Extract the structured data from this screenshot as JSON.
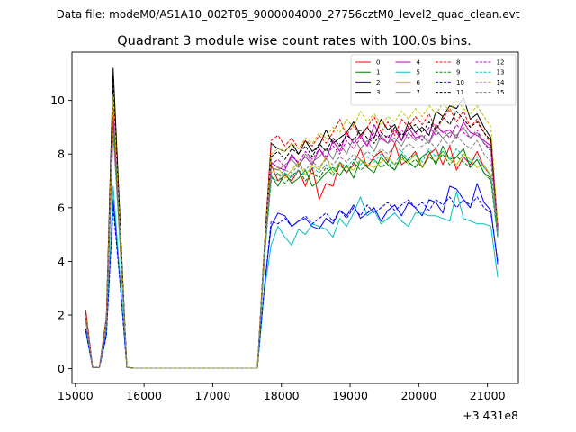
{
  "chart_data": {
    "type": "line",
    "suptitle": "Data file: modeM0/AS1A10_002T05_9000004000_27756cztM0_level2_quad_clean.evt",
    "title": "Quadrant 3 module wise count rates with 100.0s bins.",
    "xlabel": "",
    "ylabel": "",
    "x_offset_label": "+3.431e8",
    "xlim": [
      14950,
      21450
    ],
    "ylim": [
      -0.55,
      11.8
    ],
    "x_ticks": [
      15000,
      16000,
      17000,
      18000,
      19000,
      20000,
      21000
    ],
    "y_ticks": [
      0,
      2,
      4,
      6,
      8,
      10
    ],
    "grid": false,
    "legend": {
      "placement": "top-right",
      "columns": 4
    },
    "x": [
      15150,
      15250,
      15350,
      15450,
      15550,
      15650,
      15750,
      15850,
      15950,
      16050,
      16150,
      16250,
      16350,
      16450,
      16550,
      16650,
      16750,
      16850,
      16950,
      17050,
      17150,
      17250,
      17350,
      17450,
      17550,
      17650,
      17750,
      17850,
      17950,
      18050,
      18150,
      18250,
      18350,
      18450,
      18550,
      18650,
      18750,
      18850,
      18950,
      19050,
      19150,
      19250,
      19350,
      19450,
      19550,
      19650,
      19750,
      19850,
      19950,
      20050,
      20150,
      20250,
      20350,
      20450,
      20550,
      20650,
      20750,
      20850,
      20950,
      21050,
      21150
    ],
    "series": [
      {
        "name": "0",
        "color": "#ff0000",
        "dash": "solid",
        "values": [
          2.2,
          0.05,
          0.05,
          1.8,
          9.6,
          5.1,
          0.05,
          0.02,
          0.02,
          0.02,
          0.02,
          0.02,
          0.02,
          0.02,
          0.02,
          0.02,
          0.02,
          0.02,
          0.02,
          0.02,
          0.02,
          0.02,
          0.02,
          0.02,
          0.02,
          0.02,
          4.2,
          7.6,
          7.0,
          7.2,
          7.0,
          7.4,
          6.8,
          7.5,
          6.3,
          6.9,
          6.8,
          7.7,
          7.3,
          7.6,
          8.2,
          7.5,
          7.9,
          8.1,
          7.7,
          8.4,
          7.6,
          7.8,
          8.1,
          7.5,
          8.0,
          8.2,
          7.6,
          8.3,
          7.4,
          7.9,
          7.6,
          8.1,
          7.5,
          7.2,
          5.0
        ]
      },
      {
        "name": "1",
        "color": "#008000",
        "dash": "solid",
        "values": [
          1.9,
          0.05,
          0.05,
          1.6,
          9.1,
          4.8,
          0.05,
          0.02,
          0.02,
          0.02,
          0.02,
          0.02,
          0.02,
          0.02,
          0.02,
          0.02,
          0.02,
          0.02,
          0.02,
          0.02,
          0.02,
          0.02,
          0.02,
          0.02,
          0.02,
          0.02,
          4.1,
          7.2,
          6.8,
          7.3,
          6.9,
          7.1,
          7.4,
          6.8,
          7.0,
          7.3,
          7.5,
          7.2,
          7.6,
          7.1,
          7.8,
          7.5,
          7.3,
          7.9,
          7.6,
          7.4,
          8.0,
          7.7,
          7.5,
          7.9,
          8.1,
          7.6,
          8.3,
          7.8,
          7.9,
          8.2,
          7.5,
          7.8,
          7.3,
          7.1,
          4.9
        ]
      },
      {
        "name": "2",
        "color": "#0000ff",
        "dash": "solid",
        "values": [
          1.5,
          0.05,
          0.05,
          1.3,
          6.3,
          3.3,
          0.05,
          0.02,
          0.02,
          0.02,
          0.02,
          0.02,
          0.02,
          0.02,
          0.02,
          0.02,
          0.02,
          0.02,
          0.02,
          0.02,
          0.02,
          0.02,
          0.02,
          0.02,
          0.02,
          0.02,
          3.0,
          5.3,
          5.8,
          5.7,
          5.3,
          5.5,
          5.6,
          5.3,
          5.2,
          5.6,
          5.4,
          5.9,
          5.7,
          6.1,
          5.6,
          5.8,
          6.0,
          5.5,
          5.9,
          6.1,
          5.7,
          6.2,
          6.0,
          5.7,
          6.3,
          6.2,
          5.8,
          6.8,
          6.7,
          6.3,
          6.0,
          6.9,
          6.2,
          5.9,
          3.9
        ]
      },
      {
        "name": "3",
        "color": "#000000",
        "dash": "solid",
        "values": [
          2.1,
          0.05,
          0.05,
          1.9,
          11.2,
          5.6,
          0.05,
          0.02,
          0.02,
          0.02,
          0.02,
          0.02,
          0.02,
          0.02,
          0.02,
          0.02,
          0.02,
          0.02,
          0.02,
          0.02,
          0.02,
          0.02,
          0.02,
          0.02,
          0.02,
          0.02,
          4.5,
          8.4,
          8.2,
          8.1,
          8.4,
          8.0,
          8.5,
          8.1,
          8.3,
          8.9,
          8.4,
          8.6,
          8.8,
          9.2,
          8.7,
          9.0,
          8.6,
          9.3,
          8.9,
          9.1,
          8.5,
          9.2,
          8.8,
          9.0,
          8.7,
          9.6,
          9.4,
          9.8,
          9.7,
          10.1,
          9.3,
          9.5,
          9.0,
          8.6,
          5.3
        ]
      },
      {
        "name": "4",
        "color": "#bf00bf",
        "dash": "solid",
        "values": [
          2.0,
          0.05,
          0.05,
          1.7,
          9.3,
          4.9,
          0.05,
          0.02,
          0.02,
          0.02,
          0.02,
          0.02,
          0.02,
          0.02,
          0.02,
          0.02,
          0.02,
          0.02,
          0.02,
          0.02,
          0.02,
          0.02,
          0.02,
          0.02,
          0.02,
          0.02,
          4.3,
          7.7,
          7.5,
          7.4,
          8.0,
          7.6,
          7.9,
          7.6,
          8.2,
          7.8,
          8.5,
          8.1,
          8.8,
          8.4,
          8.7,
          8.3,
          9.1,
          8.6,
          8.4,
          8.9,
          8.5,
          9.0,
          8.6,
          8.7,
          8.4,
          9.1,
          8.8,
          8.9,
          8.6,
          9.2,
          8.8,
          8.7,
          8.5,
          8.3,
          5.1
        ]
      },
      {
        "name": "5",
        "color": "#00bfbf",
        "dash": "solid",
        "values": [
          1.4,
          0.05,
          0.05,
          1.2,
          6.8,
          3.4,
          0.05,
          0.02,
          0.02,
          0.02,
          0.02,
          0.02,
          0.02,
          0.02,
          0.02,
          0.02,
          0.02,
          0.02,
          0.02,
          0.02,
          0.02,
          0.02,
          0.02,
          0.02,
          0.02,
          0.02,
          2.9,
          4.6,
          5.3,
          4.9,
          4.6,
          5.2,
          5.0,
          5.4,
          5.3,
          5.2,
          4.9,
          5.6,
          5.3,
          5.8,
          6.4,
          5.7,
          5.9,
          5.4,
          5.6,
          5.8,
          5.5,
          5.3,
          5.8,
          5.8,
          5.7,
          5.7,
          5.6,
          5.5,
          6.6,
          5.6,
          5.5,
          5.4,
          5.4,
          5.3,
          3.4
        ]
      },
      {
        "name": "6",
        "color": "#bfbf00",
        "dash": "solid",
        "values": [
          1.8,
          0.05,
          0.05,
          1.6,
          10.0,
          5.0,
          0.05,
          0.02,
          0.02,
          0.02,
          0.02,
          0.02,
          0.02,
          0.02,
          0.02,
          0.02,
          0.02,
          0.02,
          0.02,
          0.02,
          0.02,
          0.02,
          0.02,
          0.02,
          0.02,
          0.02,
          4.2,
          7.3,
          7.5,
          7.1,
          7.4,
          7.7,
          7.2,
          7.6,
          7.4,
          7.9,
          7.3,
          7.7,
          7.5,
          7.4,
          7.8,
          7.6,
          7.5,
          7.7,
          7.9,
          7.6,
          7.8,
          7.7,
          8.0,
          7.5,
          7.9,
          7.7,
          8.1,
          7.8,
          7.6,
          8.0,
          7.8,
          7.5,
          7.6,
          7.2,
          5.0
        ]
      },
      {
        "name": "7",
        "color": "#808080",
        "dash": "solid",
        "values": [
          1.9,
          0.05,
          0.05,
          1.6,
          9.0,
          4.8,
          0.05,
          0.02,
          0.02,
          0.02,
          0.02,
          0.02,
          0.02,
          0.02,
          0.02,
          0.02,
          0.02,
          0.02,
          0.02,
          0.02,
          0.02,
          0.02,
          0.02,
          0.02,
          0.02,
          0.02,
          4.2,
          7.5,
          7.4,
          7.6,
          7.8,
          7.5,
          8.0,
          7.7,
          7.9,
          8.2,
          7.8,
          8.4,
          8.0,
          8.6,
          8.2,
          8.5,
          8.1,
          8.7,
          8.4,
          8.6,
          8.3,
          8.8,
          8.5,
          8.7,
          8.4,
          8.9,
          8.6,
          8.8,
          8.7,
          9.0,
          8.6,
          8.8,
          8.4,
          8.2,
          5.1
        ]
      },
      {
        "name": "8",
        "color": "#ff0000",
        "dash": "dashed",
        "values": [
          2.1,
          0.05,
          0.05,
          1.8,
          9.8,
          5.2,
          0.05,
          0.02,
          0.02,
          0.02,
          0.02,
          0.02,
          0.02,
          0.02,
          0.02,
          0.02,
          0.02,
          0.02,
          0.02,
          0.02,
          0.02,
          0.02,
          0.02,
          0.02,
          0.02,
          0.02,
          4.4,
          8.5,
          8.7,
          8.3,
          8.6,
          8.2,
          8.5,
          8.3,
          8.7,
          8.4,
          8.8,
          9.3,
          8.7,
          9.1,
          8.6,
          9.0,
          9.4,
          8.8,
          9.2,
          8.7,
          9.3,
          9.0,
          9.4,
          9.1,
          9.5,
          8.9,
          9.3,
          9.7,
          9.2,
          9.6,
          9.0,
          9.3,
          8.8,
          8.4,
          5.2
        ]
      },
      {
        "name": "9",
        "color": "#008000",
        "dash": "dashed",
        "values": [
          1.9,
          0.05,
          0.05,
          1.6,
          9.0,
          4.7,
          0.05,
          0.02,
          0.02,
          0.02,
          0.02,
          0.02,
          0.02,
          0.02,
          0.02,
          0.02,
          0.02,
          0.02,
          0.02,
          0.02,
          0.02,
          0.02,
          0.02,
          0.02,
          0.02,
          0.02,
          4.1,
          7.0,
          7.3,
          6.9,
          7.2,
          7.4,
          7.0,
          7.3,
          7.1,
          7.5,
          7.2,
          7.6,
          7.3,
          7.7,
          7.4,
          7.6,
          7.8,
          7.5,
          7.7,
          7.4,
          7.9,
          7.6,
          7.8,
          7.5,
          7.9,
          7.7,
          8.0,
          7.6,
          7.9,
          7.7,
          7.5,
          7.8,
          7.3,
          7.0,
          4.9
        ]
      },
      {
        "name": "10",
        "color": "#0000ff",
        "dash": "dashed",
        "values": [
          1.4,
          0.05,
          0.05,
          1.2,
          6.0,
          3.2,
          0.05,
          0.02,
          0.02,
          0.02,
          0.02,
          0.02,
          0.02,
          0.02,
          0.02,
          0.02,
          0.02,
          0.02,
          0.02,
          0.02,
          0.02,
          0.02,
          0.02,
          0.02,
          0.02,
          0.02,
          3.0,
          5.5,
          5.4,
          5.6,
          5.3,
          5.5,
          5.7,
          5.4,
          5.6,
          5.8,
          5.5,
          5.9,
          5.6,
          6.0,
          5.7,
          6.1,
          5.8,
          6.0,
          6.2,
          5.9,
          6.1,
          6.3,
          6.0,
          6.2,
          5.9,
          6.3,
          6.1,
          6.4,
          6.0,
          6.3,
          6.1,
          6.4,
          6.0,
          5.8,
          4.0
        ]
      },
      {
        "name": "11",
        "color": "#000000",
        "dash": "dashed",
        "values": [
          2.0,
          0.05,
          0.05,
          1.8,
          10.6,
          5.4,
          0.05,
          0.02,
          0.02,
          0.02,
          0.02,
          0.02,
          0.02,
          0.02,
          0.02,
          0.02,
          0.02,
          0.02,
          0.02,
          0.02,
          0.02,
          0.02,
          0.02,
          0.02,
          0.02,
          0.02,
          4.4,
          7.9,
          8.1,
          7.8,
          8.2,
          8.0,
          8.3,
          7.9,
          8.4,
          8.1,
          8.6,
          8.3,
          8.7,
          8.5,
          8.9,
          8.6,
          8.4,
          8.8,
          8.6,
          9.0,
          8.7,
          8.9,
          9.1,
          8.8,
          9.2,
          8.9,
          9.4,
          9.1,
          9.6,
          9.3,
          9.0,
          9.2,
          8.8,
          8.5,
          5.3
        ]
      },
      {
        "name": "12",
        "color": "#bf00bf",
        "dash": "dashed",
        "values": [
          1.9,
          0.05,
          0.05,
          1.7,
          9.2,
          4.9,
          0.05,
          0.02,
          0.02,
          0.02,
          0.02,
          0.02,
          0.02,
          0.02,
          0.02,
          0.02,
          0.02,
          0.02,
          0.02,
          0.02,
          0.02,
          0.02,
          0.02,
          0.02,
          0.02,
          0.02,
          4.3,
          7.6,
          7.8,
          7.5,
          7.9,
          7.7,
          8.1,
          7.8,
          8.2,
          7.9,
          8.3,
          8.0,
          8.5,
          8.2,
          8.6,
          8.3,
          8.8,
          8.5,
          8.7,
          8.4,
          8.9,
          8.6,
          8.8,
          8.5,
          9.0,
          8.7,
          8.9,
          8.6,
          9.1,
          8.8,
          8.6,
          8.9,
          8.4,
          8.1,
          5.1
        ]
      },
      {
        "name": "13",
        "color": "#00bfbf",
        "dash": "dashed",
        "values": [
          1.8,
          0.05,
          0.05,
          1.6,
          8.8,
          4.6,
          0.05,
          0.02,
          0.02,
          0.02,
          0.02,
          0.02,
          0.02,
          0.02,
          0.02,
          0.02,
          0.02,
          0.02,
          0.02,
          0.02,
          0.02,
          0.02,
          0.02,
          0.02,
          0.02,
          0.02,
          4.0,
          7.1,
          7.0,
          7.3,
          7.1,
          7.4,
          7.2,
          7.5,
          7.3,
          7.6,
          7.4,
          7.7,
          7.5,
          7.8,
          7.6,
          7.9,
          7.7,
          8.0,
          7.8,
          7.6,
          8.1,
          7.8,
          8.0,
          7.7,
          8.2,
          7.9,
          8.1,
          7.8,
          8.2,
          7.9,
          7.7,
          7.9,
          7.5,
          7.2,
          4.9
        ]
      },
      {
        "name": "14",
        "color": "#bfbf00",
        "dash": "dashed",
        "values": [
          2.0,
          0.05,
          0.05,
          1.8,
          10.2,
          5.3,
          0.05,
          0.02,
          0.02,
          0.02,
          0.02,
          0.02,
          0.02,
          0.02,
          0.02,
          0.02,
          0.02,
          0.02,
          0.02,
          0.02,
          0.02,
          0.02,
          0.02,
          0.02,
          0.02,
          0.02,
          4.4,
          8.0,
          8.2,
          8.1,
          8.4,
          8.2,
          8.6,
          8.4,
          8.8,
          8.6,
          9.0,
          8.8,
          9.3,
          9.0,
          9.6,
          9.2,
          9.5,
          9.1,
          9.4,
          9.2,
          9.6,
          9.3,
          9.7,
          9.4,
          9.8,
          9.5,
          9.9,
          9.6,
          10.0,
          9.7,
          9.5,
          9.8,
          9.4,
          9.0,
          5.4
        ]
      },
      {
        "name": "15",
        "color": "#808080",
        "dash": "dashed",
        "values": [
          1.8,
          0.05,
          0.05,
          1.6,
          8.9,
          4.7,
          0.05,
          0.02,
          0.02,
          0.02,
          0.02,
          0.02,
          0.02,
          0.02,
          0.02,
          0.02,
          0.02,
          0.02,
          0.02,
          0.02,
          0.02,
          0.02,
          0.02,
          0.02,
          0.02,
          0.02,
          4.1,
          7.3,
          7.2,
          7.4,
          7.3,
          7.6,
          7.4,
          7.7,
          7.5,
          7.8,
          7.6,
          7.9,
          7.7,
          8.0,
          7.8,
          8.1,
          7.9,
          8.2,
          8.0,
          8.3,
          8.1,
          8.4,
          8.2,
          8.3,
          8.5,
          8.2,
          8.6,
          8.3,
          8.7,
          8.4,
          8.2,
          8.5,
          8.0,
          7.7,
          5.0
        ]
      }
    ]
  }
}
